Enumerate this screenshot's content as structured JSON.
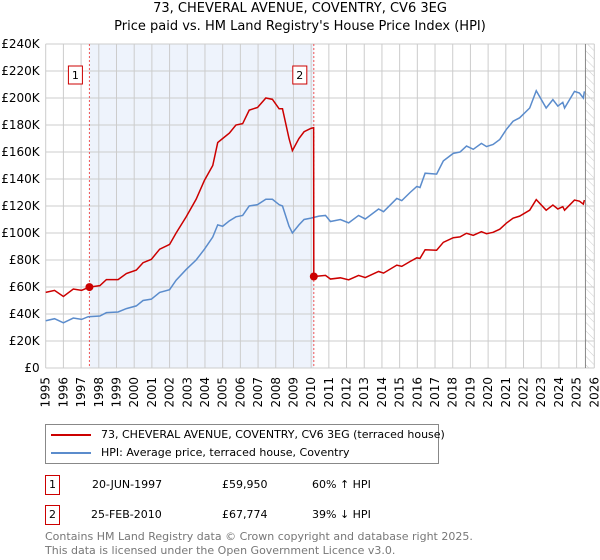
{
  "title": "73, CHEVERAL AVENUE, COVENTRY, CV6 3EG",
  "subtitle": "Price paid vs. HM Land Registry's House Price Index (HPI)",
  "chart_data": {
    "type": "line",
    "title": "73, CHEVERAL AVENUE, COVENTRY, CV6 3EG",
    "subtitle": "Price paid vs. HM Land Registry's House Price Index (HPI)",
    "xlim": [
      1995,
      2026
    ],
    "ylim": [
      0,
      240000
    ],
    "x_ticks": [
      "1995",
      "1996",
      "1997",
      "1998",
      "1999",
      "2000",
      "2001",
      "2002",
      "2003",
      "2004",
      "2005",
      "2006",
      "2007",
      "2008",
      "2009",
      "2010",
      "2011",
      "2012",
      "2013",
      "2014",
      "2015",
      "2016",
      "2017",
      "2018",
      "2019",
      "2020",
      "2021",
      "2022",
      "2023",
      "2024",
      "2025",
      "2026"
    ],
    "y_ticks": [
      {
        "v": 0,
        "l": "£0"
      },
      {
        "v": 20000,
        "l": "£20K"
      },
      {
        "v": 40000,
        "l": "£40K"
      },
      {
        "v": 60000,
        "l": "£60K"
      },
      {
        "v": 80000,
        "l": "£80K"
      },
      {
        "v": 100000,
        "l": "£100K"
      },
      {
        "v": 120000,
        "l": "£120K"
      },
      {
        "v": 140000,
        "l": "£140K"
      },
      {
        "v": 160000,
        "l": "£160K"
      },
      {
        "v": 180000,
        "l": "£180K"
      },
      {
        "v": 200000,
        "l": "£200K"
      },
      {
        "v": 220000,
        "l": "£220K"
      },
      {
        "v": 240000,
        "l": "£240K"
      }
    ],
    "grid": true,
    "colors": {
      "property": "#cc0000",
      "hpi": "#5b8ccc",
      "shade": "#eef3fc",
      "sale_line": "#ee5555"
    },
    "series": [
      {
        "name": "73, CHEVERAL AVENUE, COVENTRY, CV6 3EG (terraced house)",
        "key": "property",
        "x": [
          1995.0,
          1995.5,
          1996.0,
          1996.56,
          1997.03,
          1997.47,
          1998.06,
          1998.43,
          1999.09,
          1999.56,
          2000.12,
          2000.5,
          2000.97,
          2001.44,
          2002.0,
          2002.37,
          2002.94,
          2003.5,
          2003.97,
          2004.44,
          2004.72,
          2005.0,
          2005.38,
          2005.75,
          2006.13,
          2006.5,
          2006.97,
          2007.44,
          2007.81,
          2008.19,
          2008.38,
          2008.75,
          2008.94,
          2009.31,
          2009.6,
          2009.99,
          2010.14,
          2010.15,
          2010.81,
          2011.09,
          2011.65,
          2012.12,
          2012.68,
          2013.06,
          2013.81,
          2014.09,
          2014.84,
          2015.12,
          2015.59,
          2015.97,
          2016.15,
          2016.44,
          2017.09,
          2017.47,
          2018.03,
          2018.41,
          2018.78,
          2019.16,
          2019.62,
          2019.91,
          2020.28,
          2020.66,
          2021.03,
          2021.41,
          2021.78,
          2022.35,
          2022.72,
          2023.28,
          2023.66,
          2023.94,
          2024.22,
          2024.32,
          2024.88,
          2025.16,
          2025.38,
          2025.44
        ],
        "y": [
          56000,
          57500,
          53000,
          58500,
          57500,
          59950,
          61000,
          65500,
          65500,
          70000,
          72500,
          78000,
          80500,
          88000,
          91500,
          100000,
          112000,
          125000,
          139000,
          150000,
          167000,
          170000,
          174000,
          180000,
          181000,
          191000,
          193000,
          200000,
          199000,
          192000,
          192000,
          170000,
          161000,
          170000,
          175000,
          177500,
          178000,
          67774,
          68600,
          65900,
          66800,
          65300,
          68600,
          67000,
          71500,
          70300,
          76200,
          75300,
          78900,
          81600,
          81200,
          87600,
          87200,
          93100,
          96500,
          97100,
          99800,
          98300,
          101000,
          99500,
          100500,
          102800,
          107300,
          111000,
          112500,
          116900,
          124700,
          116900,
          120700,
          117800,
          119500,
          116900,
          124400,
          123600,
          121400,
          124400
        ]
      },
      {
        "name": "HPI: Average price, terraced house, Coventry",
        "key": "hpi",
        "x": [
          1995.0,
          1995.5,
          1996.0,
          1996.56,
          1997.03,
          1997.4,
          1998.06,
          1998.43,
          1999.09,
          1999.56,
          2000.12,
          2000.5,
          2000.97,
          2001.44,
          2002.0,
          2002.37,
          2002.94,
          2003.5,
          2003.97,
          2004.44,
          2004.72,
          2005.0,
          2005.38,
          2005.75,
          2006.13,
          2006.5,
          2006.97,
          2007.44,
          2007.81,
          2008.19,
          2008.38,
          2008.75,
          2008.94,
          2009.31,
          2009.6,
          2009.99,
          2010.44,
          2010.81,
          2011.09,
          2011.65,
          2012.12,
          2012.68,
          2013.06,
          2013.81,
          2014.09,
          2014.84,
          2015.12,
          2015.59,
          2015.97,
          2016.15,
          2016.44,
          2017.09,
          2017.47,
          2018.03,
          2018.41,
          2018.78,
          2019.16,
          2019.62,
          2019.91,
          2020.28,
          2020.66,
          2021.03,
          2021.41,
          2021.78,
          2022.35,
          2022.72,
          2023.28,
          2023.66,
          2023.94,
          2024.22,
          2024.32,
          2024.88,
          2025.16,
          2025.38,
          2025.44
        ],
        "y": [
          35000,
          36500,
          33500,
          37000,
          36000,
          38000,
          38500,
          41000,
          41500,
          44000,
          46000,
          50000,
          51000,
          56000,
          58000,
          65000,
          73000,
          80000,
          88000,
          97000,
          106000,
          105000,
          109000,
          112000,
          113000,
          120000,
          121000,
          125000,
          125000,
          121000,
          120000,
          105000,
          100000,
          106000,
          110000,
          111000,
          112500,
          113000,
          108500,
          110000,
          107500,
          113000,
          110400,
          117800,
          115800,
          125600,
          124000,
          130000,
          134500,
          133700,
          144300,
          143600,
          153400,
          159000,
          160000,
          164400,
          162000,
          166400,
          164000,
          165600,
          169300,
          176700,
          182800,
          185300,
          192600,
          205400,
          192600,
          198800,
          194000,
          196800,
          192600,
          204900,
          203700,
          200000,
          204900
        ]
      }
    ],
    "sales": [
      {
        "label": "1",
        "x": 1997.47,
        "y": 59950
      },
      {
        "label": "2",
        "x": 2010.15,
        "y": 67774
      }
    ],
    "forecast_hatch_from": 2025.5
  },
  "legend": {
    "property": "73, CHEVERAL AVENUE, COVENTRY, CV6 3EG (terraced house)",
    "hpi": "HPI: Average price, terraced house, Coventry"
  },
  "table": [
    {
      "n": "1",
      "date": "20-JUN-1997",
      "price": "£59,950",
      "hpi": "60% ↑ HPI"
    },
    {
      "n": "2",
      "date": "25-FEB-2010",
      "price": "£67,774",
      "hpi": "39% ↓ HPI"
    }
  ],
  "footer": [
    "Contains HM Land Registry data © Crown copyright and database right 2025.",
    "This data is licensed under the Open Government Licence v3.0."
  ]
}
